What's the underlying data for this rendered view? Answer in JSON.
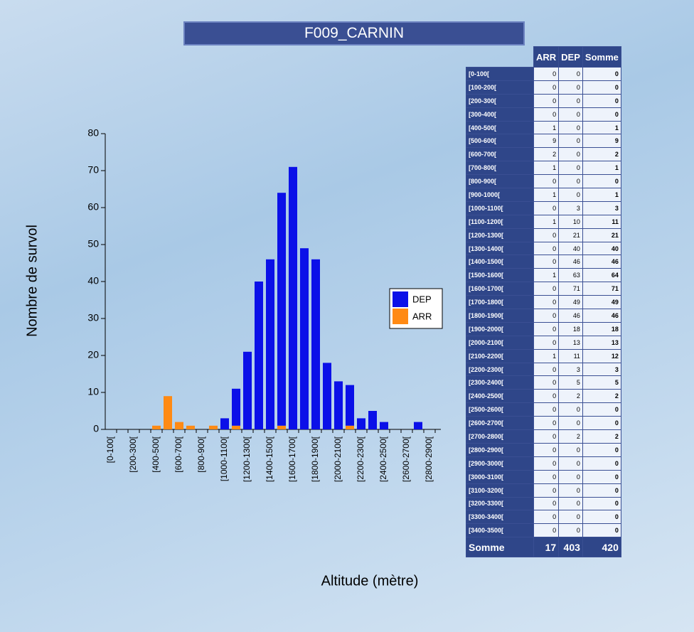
{
  "chart_data": {
    "type": "stacked_bar",
    "title": "F009_CARNIN",
    "x_label": "Altitude (mètre)",
    "y_label": "Nombre de survol",
    "categories": [
      "[0-100[",
      null,
      "[200-300[",
      null,
      "[400-500[",
      null,
      "[600-700[",
      null,
      "[800-900[",
      null,
      "[1000-1100[",
      null,
      "[1200-1300[",
      null,
      "[1400-1500[",
      null,
      "[1600-1700[",
      null,
      "[1800-1900[",
      null,
      "[2000-2100[",
      null,
      "[2200-2300[",
      null,
      "[2400-2500[",
      null,
      "[2600-2700[",
      null,
      "[2800-2900["
    ],
    "series": [
      {
        "name": "DEP",
        "color": "#0b10e8",
        "values": [
          0,
          0,
          0,
          0,
          0,
          0,
          0,
          0,
          0,
          0,
          3,
          10,
          21,
          40,
          46,
          63,
          71,
          49,
          46,
          18,
          13,
          11,
          3,
          5,
          2,
          0,
          0,
          2,
          0
        ]
      },
      {
        "name": "ARR",
        "color": "#ff8a14",
        "values": [
          0,
          0,
          0,
          0,
          1,
          9,
          2,
          1,
          0,
          1,
          0,
          1,
          0,
          0,
          0,
          1,
          0,
          0,
          0,
          0,
          0,
          1,
          0,
          0,
          0,
          0,
          0,
          0,
          0
        ]
      }
    ],
    "stack_order": [
      "ARR",
      "DEP"
    ],
    "ylim": [
      0,
      80
    ],
    "yticks": [
      0,
      10,
      20,
      30,
      40,
      50,
      60,
      70,
      80
    ],
    "legend": "right"
  },
  "table": {
    "header": [
      "ARR",
      "DEP",
      "Somme"
    ],
    "rows": [
      [
        "[0-100[",
        "0",
        "0",
        "0"
      ],
      [
        "[100-200[",
        "0",
        "0",
        "0"
      ],
      [
        "[200-300[",
        "0",
        "0",
        "0"
      ],
      [
        "[300-400[",
        "0",
        "0",
        "0"
      ],
      [
        "[400-500[",
        "1",
        "0",
        "1"
      ],
      [
        "[500-600[",
        "9",
        "0",
        "9"
      ],
      [
        "[600-700[",
        "2",
        "0",
        "2"
      ],
      [
        "[700-800[",
        "1",
        "0",
        "1"
      ],
      [
        "[800-900[",
        "0",
        "0",
        "0"
      ],
      [
        "[900-1000[",
        "1",
        "0",
        "1"
      ],
      [
        "[1000-1100[",
        "0",
        "3",
        "3"
      ],
      [
        "[1100-1200[",
        "1",
        "10",
        "11"
      ],
      [
        "[1200-1300[",
        "0",
        "21",
        "21"
      ],
      [
        "[1300-1400[",
        "0",
        "40",
        "40"
      ],
      [
        "[1400-1500[",
        "0",
        "46",
        "46"
      ],
      [
        "[1500-1600[",
        "1",
        "63",
        "64"
      ],
      [
        "[1600-1700[",
        "0",
        "71",
        "71"
      ],
      [
        "[1700-1800[",
        "0",
        "49",
        "49"
      ],
      [
        "[1800-1900[",
        "0",
        "46",
        "46"
      ],
      [
        "[1900-2000[",
        "0",
        "18",
        "18"
      ],
      [
        "[2000-2100[",
        "0",
        "13",
        "13"
      ],
      [
        "[2100-2200[",
        "1",
        "11",
        "12"
      ],
      [
        "[2200-2300[",
        "0",
        "3",
        "3"
      ],
      [
        "[2300-2400[",
        "0",
        "5",
        "5"
      ],
      [
        "[2400-2500[",
        "0",
        "2",
        "2"
      ],
      [
        "[2500-2600[",
        "0",
        "0",
        "0"
      ],
      [
        "[2600-2700[",
        "0",
        "0",
        "0"
      ],
      [
        "[2700-2800[",
        "0",
        "2",
        "2"
      ],
      [
        "[2800-2900[",
        "0",
        "0",
        "0"
      ],
      [
        "[2900-3000[",
        "0",
        "0",
        "0"
      ],
      [
        "[3000-3100[",
        "0",
        "0",
        "0"
      ],
      [
        "[3100-3200[",
        "0",
        "0",
        "0"
      ],
      [
        "[3200-3300[",
        "0",
        "0",
        "0"
      ],
      [
        "[3300-3400[",
        "0",
        "0",
        "0"
      ],
      [
        "[3400-3500[",
        "0",
        "0",
        "0"
      ]
    ],
    "footer": [
      "Somme",
      "17",
      "403",
      "420"
    ]
  }
}
